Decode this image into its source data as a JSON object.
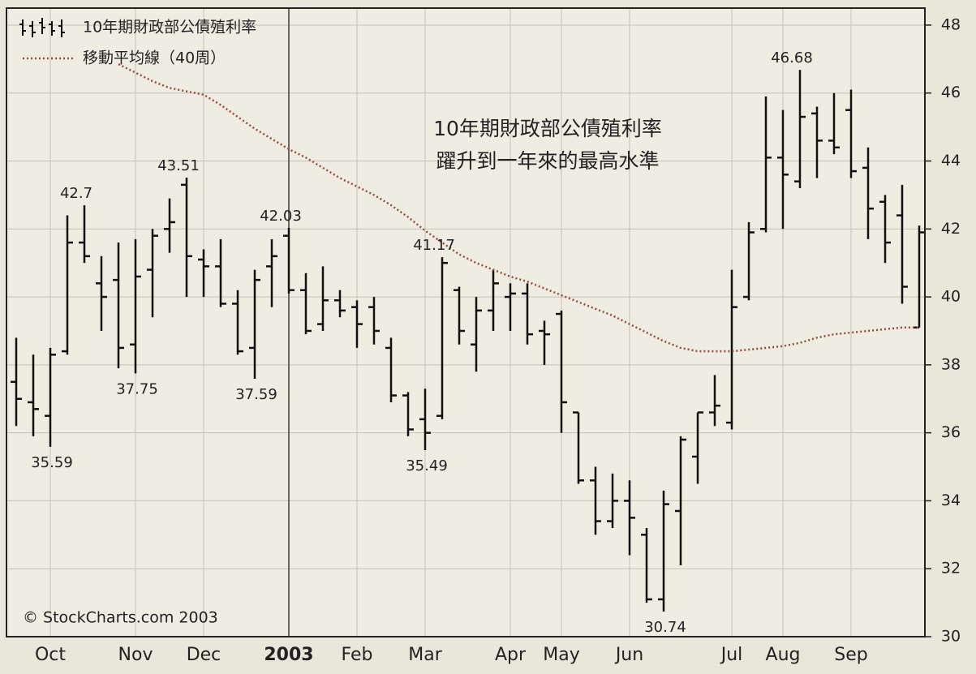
{
  "chart_data": {
    "type": "ohlc",
    "annotation": [
      "10年期財政部公債殖利率",
      "躍升到一年來的最高水準"
    ],
    "credit": "© StockCharts.com 2003",
    "categories": [
      null,
      null,
      "Oct",
      null,
      null,
      null,
      null,
      "Nov",
      null,
      null,
      null,
      "Dec",
      null,
      null,
      null,
      null,
      "2003",
      null,
      null,
      null,
      "Feb",
      null,
      null,
      null,
      "Mar",
      null,
      null,
      null,
      null,
      "Apr",
      null,
      null,
      "May",
      null,
      null,
      null,
      "Jun",
      null,
      null,
      null,
      null,
      null,
      "Jul",
      null,
      null,
      "Aug",
      null,
      null,
      null,
      "Sep",
      null,
      null,
      null,
      null
    ],
    "series": [
      {
        "name": "10年期財政部公債殖利率",
        "color": "#111111",
        "open": [
          37.5,
          36.9,
          36.5,
          38.4,
          41.6,
          40.4,
          40.5,
          38.6,
          40.8,
          42.0,
          43.3,
          41.1,
          40.9,
          39.8,
          38.5,
          40.9,
          41.8,
          40.2,
          39.2,
          39.9,
          39.7,
          39.7,
          38.5,
          37.1,
          36.4,
          36.5,
          40.2,
          38.6,
          39.6,
          40.0,
          40.1,
          39.0,
          39.5,
          36.6,
          34.6,
          33.4,
          34.0,
          33.0,
          31.1,
          33.7,
          35.3,
          36.6,
          36.3,
          40.0,
          42.0,
          44.1,
          43.4,
          45.4,
          44.6,
          45.5,
          43.8,
          42.8,
          42.4,
          39.1
        ],
        "high": [
          38.8,
          38.3,
          38.5,
          42.4,
          42.7,
          41.2,
          41.6,
          41.7,
          42.0,
          42.9,
          43.51,
          41.4,
          41.7,
          40.2,
          40.8,
          41.7,
          42.03,
          40.7,
          40.9,
          40.2,
          39.9,
          40.0,
          38.8,
          37.2,
          37.3,
          41.17,
          40.3,
          40.0,
          40.8,
          40.4,
          40.4,
          39.3,
          39.6,
          36.6,
          35.0,
          34.8,
          34.6,
          33.2,
          34.3,
          35.9,
          36.6,
          37.7,
          40.8,
          42.2,
          45.9,
          45.5,
          46.68,
          45.6,
          46.0,
          46.1,
          44.4,
          43.0,
          43.3,
          42.1
        ],
        "low": [
          36.2,
          35.9,
          35.59,
          38.3,
          41.0,
          39.0,
          37.9,
          37.75,
          39.4,
          41.3,
          40.0,
          40.0,
          39.7,
          38.3,
          37.59,
          39.7,
          40.1,
          38.9,
          39.0,
          39.4,
          38.5,
          38.6,
          36.9,
          35.9,
          35.49,
          36.4,
          38.6,
          37.8,
          39.0,
          39.0,
          38.6,
          38.0,
          36.0,
          34.5,
          33.0,
          33.2,
          32.4,
          31.0,
          30.74,
          32.1,
          34.5,
          36.2,
          36.1,
          39.9,
          41.9,
          42.0,
          43.2,
          43.5,
          44.2,
          43.5,
          41.7,
          41.0,
          39.8,
          39.1
        ],
        "close": [
          37.0,
          36.7,
          38.3,
          41.6,
          41.2,
          40.0,
          38.5,
          40.6,
          41.8,
          42.2,
          41.2,
          40.9,
          39.8,
          38.4,
          40.5,
          41.2,
          40.2,
          39.0,
          39.9,
          39.6,
          39.2,
          39.0,
          37.1,
          36.1,
          36.0,
          41.0,
          39.0,
          39.6,
          40.4,
          40.1,
          38.9,
          38.9,
          36.9,
          34.6,
          33.4,
          34.0,
          33.5,
          31.1,
          33.9,
          35.8,
          36.6,
          36.8,
          39.7,
          41.9,
          44.1,
          43.6,
          45.3,
          44.6,
          44.4,
          43.7,
          42.6,
          41.6,
          40.3,
          41.9
        ],
        "high_labels": [
          null,
          null,
          null,
          null,
          "42.7",
          null,
          null,
          null,
          null,
          null,
          "43.51",
          null,
          null,
          null,
          null,
          null,
          "42.03",
          null,
          null,
          null,
          null,
          null,
          null,
          null,
          null,
          "41.17",
          null,
          null,
          null,
          null,
          null,
          null,
          null,
          null,
          null,
          null,
          null,
          null,
          null,
          null,
          null,
          null,
          null,
          null,
          null,
          null,
          "46.68",
          null,
          null,
          null,
          null,
          null,
          null,
          null
        ],
        "low_labels": [
          null,
          null,
          "35.59",
          null,
          null,
          null,
          null,
          "37.75",
          null,
          null,
          null,
          null,
          null,
          null,
          "37.59",
          null,
          null,
          null,
          null,
          null,
          null,
          null,
          null,
          null,
          "35.49",
          null,
          null,
          null,
          null,
          null,
          null,
          null,
          null,
          null,
          null,
          null,
          null,
          null,
          "30.74",
          null,
          null,
          null,
          null,
          null,
          null,
          null,
          null,
          null,
          null,
          null,
          null,
          null,
          null,
          null
        ]
      },
      {
        "name": "移動平均線（40周）",
        "color": "#9a4a3a",
        "values": [
          null,
          null,
          null,
          null,
          null,
          null,
          46.85,
          46.6,
          46.35,
          46.15,
          46.05,
          45.95,
          45.65,
          45.3,
          44.95,
          44.65,
          44.35,
          44.1,
          43.8,
          43.5,
          43.25,
          43.0,
          42.7,
          42.35,
          41.95,
          41.6,
          41.25,
          41.0,
          40.8,
          40.6,
          40.45,
          40.25,
          40.05,
          39.85,
          39.65,
          39.45,
          39.2,
          38.95,
          38.7,
          38.5,
          38.4,
          38.4,
          38.4,
          38.45,
          38.5,
          38.55,
          38.65,
          38.8,
          38.9,
          38.95,
          39.0,
          39.05,
          39.1,
          39.1
        ]
      }
    ],
    "ylim": [
      30,
      48.5
    ],
    "yticks": [
      30,
      32,
      34,
      36,
      38,
      40,
      42,
      44,
      46,
      48
    ],
    "grid": true
  }
}
